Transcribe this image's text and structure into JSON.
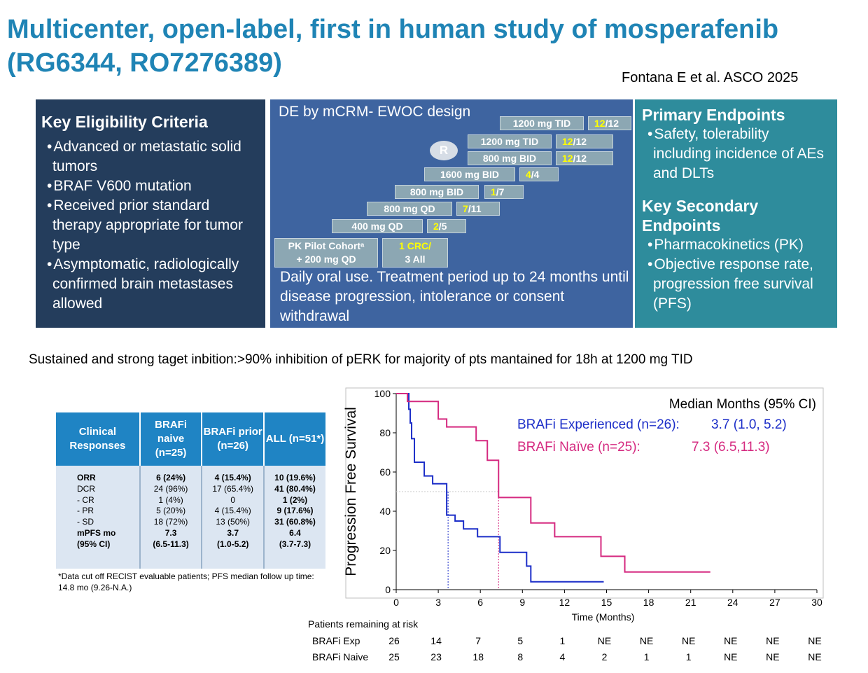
{
  "title": "Multicenter, open-label, first in human study of mosperafenib (RG6344, RO7276389)",
  "citation": "Fontana E et al. ASCO 2025",
  "eligibility": {
    "heading": "Key Eligibility Criteria",
    "items": [
      "Advanced or metastatic solid tumors",
      "BRAF V600 mutation",
      "Received prior standard therapy appropriate for tumor type",
      "Asymptomatic, radiologically confirmed brain metastases allowed"
    ]
  },
  "design": {
    "heading": "DE by mCRM- EWOC design",
    "randomization": "R",
    "doses": [
      {
        "label": "1200 mg TID",
        "ratio_hl": "12",
        "ratio_rest": "/12"
      },
      {
        "label": "1200 mg TID",
        "ratio_hl": "12",
        "ratio_rest": "/12"
      },
      {
        "label": "800 mg BID",
        "ratio_hl": "12",
        "ratio_rest": "/12"
      },
      {
        "label": "1600 mg BID",
        "ratio_hl": "4",
        "ratio_rest": "/4"
      },
      {
        "label": "800 mg BID",
        "ratio_hl": "1",
        "ratio_rest": "/7"
      },
      {
        "label": "800 mg QD",
        "ratio_hl": "7",
        "ratio_rest": "/11"
      },
      {
        "label": "400 mg QD",
        "ratio_hl": "2",
        "ratio_rest": "/5"
      }
    ],
    "pk_line1": "PK Pilot Cohortᵃ",
    "pk_line2": "+ 200 mg QD",
    "pk_ratio1": "1 CRC/",
    "pk_ratio2": "3 All",
    "footer": "Daily oral use. Treatment period up to 24 months until disease progression, intolerance or consent withdrawal"
  },
  "endpoints": {
    "primary_heading": "Primary Endpoints",
    "primary_items": [
      "Safety, tolerability including incidence of AEs and DLTs"
    ],
    "secondary_heading": "Key Secondary Endpoints",
    "secondary_items": [
      "Pharmacokinetics (PK)",
      "Objective response rate, progression free survival (PFS)"
    ]
  },
  "statement": "Sustained and strong taget inbition:>90% inhibition of pERK for majority of pts mantained for 18h at 1200 mg TID",
  "responses": {
    "headers": [
      "Clinical Responses",
      "BRAFi naive (n=25)",
      "BRAFi prior (n=26)",
      "ALL (n=51*)"
    ],
    "rows": [
      {
        "label": "ORR",
        "bold": true,
        "naive": "6 (24%)",
        "prior": "4 (15.4%)",
        "all": "10 (19.6%)"
      },
      {
        "label": "DCR",
        "bold": false,
        "naive": "24 (96%)",
        "prior": "17 (65.4%)",
        "all": "41 (80.4%)"
      },
      {
        "label": "- CR",
        "bold": false,
        "naive": "1 (4%)",
        "prior": "0",
        "all": "1 (2%)"
      },
      {
        "label": "- PR",
        "bold": false,
        "naive": "5 (20%)",
        "prior": "4 (15.4%)",
        "all": "9 (17.6%)"
      },
      {
        "label": "- SD",
        "bold": false,
        "naive": "18 (72%)",
        "prior": "13 (50%)",
        "all": "31 (60.8%)"
      },
      {
        "label": "mPFS mo",
        "bold": true,
        "naive": "7.3",
        "prior": "3.7",
        "all": "6.4"
      },
      {
        "label": "(95% CI)",
        "bold": true,
        "naive": "(6.5-11.3)",
        "prior": "(1.0-5.2)",
        "all": "(3.7-7.3)"
      }
    ],
    "note": "*Data cut off RECIST evaluable patients; PFS median follow up time: 14.8 mo (9.26-N.A.)"
  },
  "chart_data": {
    "type": "line",
    "subtype": "kaplan-meier step",
    "ylabel": "Progression Free Survival",
    "xlabel": "Time (Months)",
    "xlim": [
      0,
      30
    ],
    "ylim": [
      0,
      100
    ],
    "xticks": [
      0,
      3,
      6,
      9,
      12,
      15,
      18,
      21,
      24,
      27,
      30
    ],
    "yticks": [
      0,
      20,
      40,
      60,
      80,
      100
    ],
    "legend_title": "Median Months (95% CI)",
    "series": [
      {
        "name": "BRAFi Experienced (n=26):",
        "median_text": "3.7 (1.0, 5.2)",
        "color": "#1c2ec8",
        "median": 3.7,
        "x": [
          0,
          0.9,
          0.9,
          1.0,
          1.0,
          1.1,
          1.1,
          1.3,
          1.3,
          2.0,
          2.0,
          2.6,
          2.6,
          3.6,
          3.6,
          4.2,
          4.2,
          4.8,
          4.8,
          5.8,
          5.8,
          7.4,
          7.4,
          9.3,
          9.3,
          9.6,
          9.6,
          14.8
        ],
        "y": [
          100,
          100,
          92,
          92,
          85,
          85,
          77,
          77,
          65,
          65,
          58,
          58,
          54,
          54,
          38,
          38,
          35,
          35,
          31,
          31,
          27,
          27,
          19,
          19,
          12,
          12,
          4,
          4
        ]
      },
      {
        "name": "BRAFi Naïve (n=25):",
        "median_text": "7.3 (6.5,11.3)",
        "color": "#d52a80",
        "median": 7.3,
        "x": [
          0,
          0.8,
          0.8,
          3.0,
          3.0,
          3.6,
          3.6,
          5.7,
          5.7,
          6.5,
          6.5,
          7.3,
          7.3,
          9.6,
          9.6,
          11.3,
          11.3,
          14.6,
          14.6,
          16.3,
          16.3,
          22.4
        ],
        "y": [
          100,
          100,
          96,
          96,
          87,
          87,
          83,
          83,
          76,
          76,
          66,
          66,
          47,
          47,
          34,
          34,
          27,
          27,
          17,
          17,
          9,
          9
        ]
      }
    ],
    "risk_table": {
      "title": "Patients remaining at risk",
      "rows": [
        {
          "label": "BRAFi Exp",
          "values": [
            "26",
            "14",
            "7",
            "5",
            "1",
            "NE",
            "NE",
            "NE",
            "NE",
            "NE",
            "NE"
          ]
        },
        {
          "label": "BRAFi Naive",
          "values": [
            "25",
            "23",
            "18",
            "8",
            "4",
            "2",
            "1",
            "1",
            "NE",
            "NE",
            "NE"
          ]
        }
      ]
    }
  }
}
